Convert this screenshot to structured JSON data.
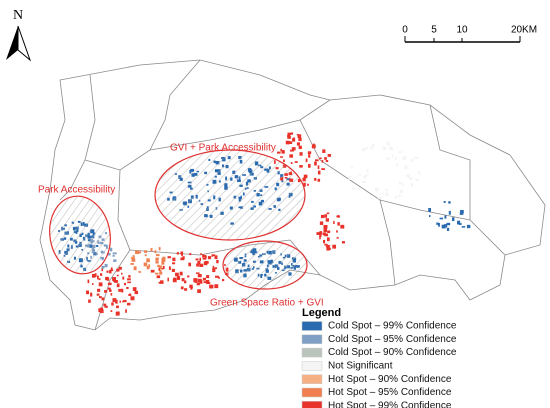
{
  "north_arrow": {
    "label": "N"
  },
  "scale_bar": {
    "labels": [
      "0",
      "5",
      "10",
      "20KM"
    ]
  },
  "annotations": [
    "Park Accessibility",
    "GVI + Park Accessibility",
    "Green Space Ratio + GVI"
  ],
  "legend": {
    "title": "Legend",
    "items": [
      {
        "label": "Cold Spot – 99% Confidence",
        "color": "#2a6bb0"
      },
      {
        "label": "Cold Spot – 95% Confidence",
        "color": "#7f9fc4"
      },
      {
        "label": "Cold Spot – 90% Confidence",
        "color": "#b9c4ba"
      },
      {
        "label": "Not Significant",
        "color": "#f4f4f4"
      },
      {
        "label": "Hot Spot – 90% Confidence",
        "color": "#f5b183"
      },
      {
        "label": "Hot Spot – 95% Confidence",
        "color": "#f08050"
      },
      {
        "label": "Hot Spot – 99% Confidence",
        "color": "#e8322a"
      }
    ]
  }
}
